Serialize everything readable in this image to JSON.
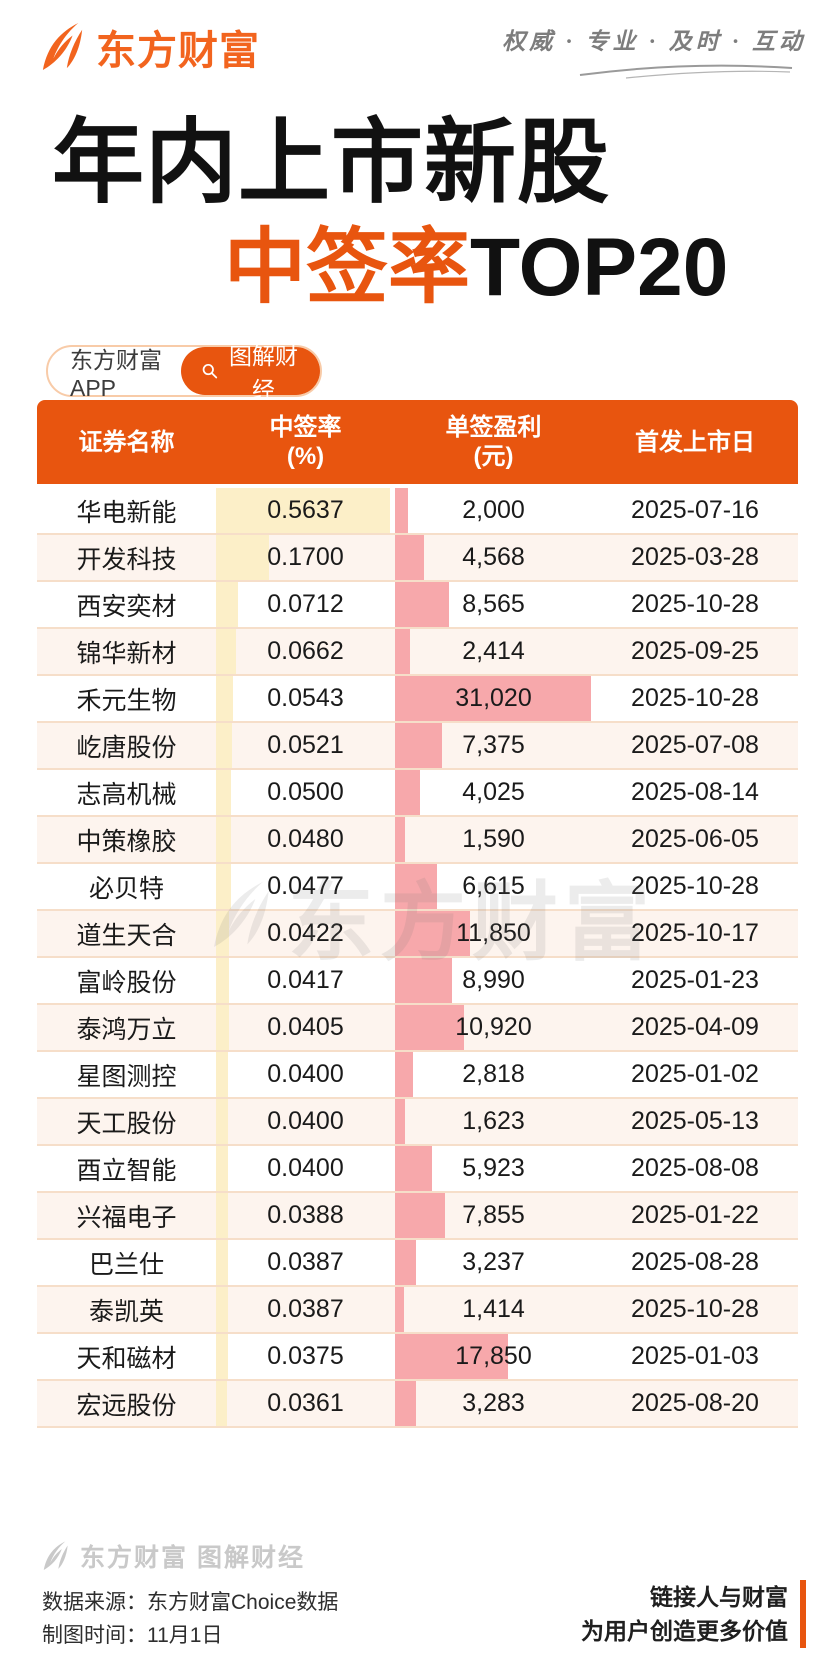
{
  "header": {
    "brand": "东方财富",
    "tagline": "权威 · 专业 · 及时 · 互动"
  },
  "title": {
    "line1": "年内上市新股",
    "line2_highlight": "中签率",
    "line2_rest": "TOP20"
  },
  "app_pill": {
    "left_label": "东方财富APP",
    "button_label": "图解财经"
  },
  "table": {
    "headers": [
      {
        "line1": "证券名称",
        "line2": ""
      },
      {
        "line1": "中签率",
        "line2": "(%)"
      },
      {
        "line1": "单签盈利",
        "line2": "(元)"
      },
      {
        "line1": "首发上市日",
        "line2": ""
      }
    ]
  },
  "chart_data": {
    "type": "table",
    "title": "年内上市新股中签率TOP20",
    "columns": [
      "证券名称",
      "中签率(%)",
      "单签盈利(元)",
      "首发上市日"
    ],
    "bar_columns": {
      "win_rate_bar_color": "#FCEFC8",
      "profit_bar_color": "#F7A8AB",
      "note": "bar widths proportional to values, max 0.5637 and 31020"
    },
    "rows": [
      {
        "name": "华电新能",
        "win_rate": 0.5637,
        "win_rate_text": "0.5637",
        "profit": 2000,
        "profit_text": "2,000",
        "list_date": "2025-07-16"
      },
      {
        "name": "开发科技",
        "win_rate": 0.17,
        "win_rate_text": "0.1700",
        "profit": 4568,
        "profit_text": "4,568",
        "list_date": "2025-03-28"
      },
      {
        "name": "西安奕材",
        "win_rate": 0.0712,
        "win_rate_text": "0.0712",
        "profit": 8565,
        "profit_text": "8,565",
        "list_date": "2025-10-28"
      },
      {
        "name": "锦华新材",
        "win_rate": 0.0662,
        "win_rate_text": "0.0662",
        "profit": 2414,
        "profit_text": "2,414",
        "list_date": "2025-09-25"
      },
      {
        "name": "禾元生物",
        "win_rate": 0.0543,
        "win_rate_text": "0.0543",
        "profit": 31020,
        "profit_text": "31,020",
        "list_date": "2025-10-28"
      },
      {
        "name": "屹唐股份",
        "win_rate": 0.0521,
        "win_rate_text": "0.0521",
        "profit": 7375,
        "profit_text": "7,375",
        "list_date": "2025-07-08"
      },
      {
        "name": "志高机械",
        "win_rate": 0.05,
        "win_rate_text": "0.0500",
        "profit": 4025,
        "profit_text": "4,025",
        "list_date": "2025-08-14"
      },
      {
        "name": "中策橡胶",
        "win_rate": 0.048,
        "win_rate_text": "0.0480",
        "profit": 1590,
        "profit_text": "1,590",
        "list_date": "2025-06-05"
      },
      {
        "name": "必贝特",
        "win_rate": 0.0477,
        "win_rate_text": "0.0477",
        "profit": 6615,
        "profit_text": "6,615",
        "list_date": "2025-10-28"
      },
      {
        "name": "道生天合",
        "win_rate": 0.0422,
        "win_rate_text": "0.0422",
        "profit": 11850,
        "profit_text": "11,850",
        "list_date": "2025-10-17"
      },
      {
        "name": "富岭股份",
        "win_rate": 0.0417,
        "win_rate_text": "0.0417",
        "profit": 8990,
        "profit_text": "8,990",
        "list_date": "2025-01-23"
      },
      {
        "name": "泰鸿万立",
        "win_rate": 0.0405,
        "win_rate_text": "0.0405",
        "profit": 10920,
        "profit_text": "10,920",
        "list_date": "2025-04-09"
      },
      {
        "name": "星图测控",
        "win_rate": 0.04,
        "win_rate_text": "0.0400",
        "profit": 2818,
        "profit_text": "2,818",
        "list_date": "2025-01-02"
      },
      {
        "name": "天工股份",
        "win_rate": 0.04,
        "win_rate_text": "0.0400",
        "profit": 1623,
        "profit_text": "1,623",
        "list_date": "2025-05-13"
      },
      {
        "name": "酉立智能",
        "win_rate": 0.04,
        "win_rate_text": "0.0400",
        "profit": 5923,
        "profit_text": "5,923",
        "list_date": "2025-08-08"
      },
      {
        "name": "兴福电子",
        "win_rate": 0.0388,
        "win_rate_text": "0.0388",
        "profit": 7855,
        "profit_text": "7,855",
        "list_date": "2025-01-22"
      },
      {
        "name": "巴兰仕",
        "win_rate": 0.0387,
        "win_rate_text": "0.0387",
        "profit": 3237,
        "profit_text": "3,237",
        "list_date": "2025-08-28"
      },
      {
        "name": "泰凯英",
        "win_rate": 0.0387,
        "win_rate_text": "0.0387",
        "profit": 1414,
        "profit_text": "1,414",
        "list_date": "2025-10-28"
      },
      {
        "name": "天和磁材",
        "win_rate": 0.0375,
        "win_rate_text": "0.0375",
        "profit": 17850,
        "profit_text": "17,850",
        "list_date": "2025-01-03"
      },
      {
        "name": "宏远股份",
        "win_rate": 0.0361,
        "win_rate_text": "0.0361",
        "profit": 3283,
        "profit_text": "3,283",
        "list_date": "2025-08-20"
      }
    ]
  },
  "watermarks": {
    "center": "东方财富",
    "bottom": "东方财富 图解财经"
  },
  "footer": {
    "source_line": "数据来源：东方财富Choice数据",
    "time_line": "制图时间：11月1日",
    "slogan_line1": "链接人与财富",
    "slogan_line2": "为用户创造更多价值"
  },
  "colors": {
    "accent_orange": "#E8550F",
    "logo_orange": "#F2641E",
    "bar_cream": "#FCEFC8",
    "bar_pink": "#F7A8AB",
    "row_alt_bg": "#FDF4EE",
    "row_divider": "#F6DEC9"
  }
}
